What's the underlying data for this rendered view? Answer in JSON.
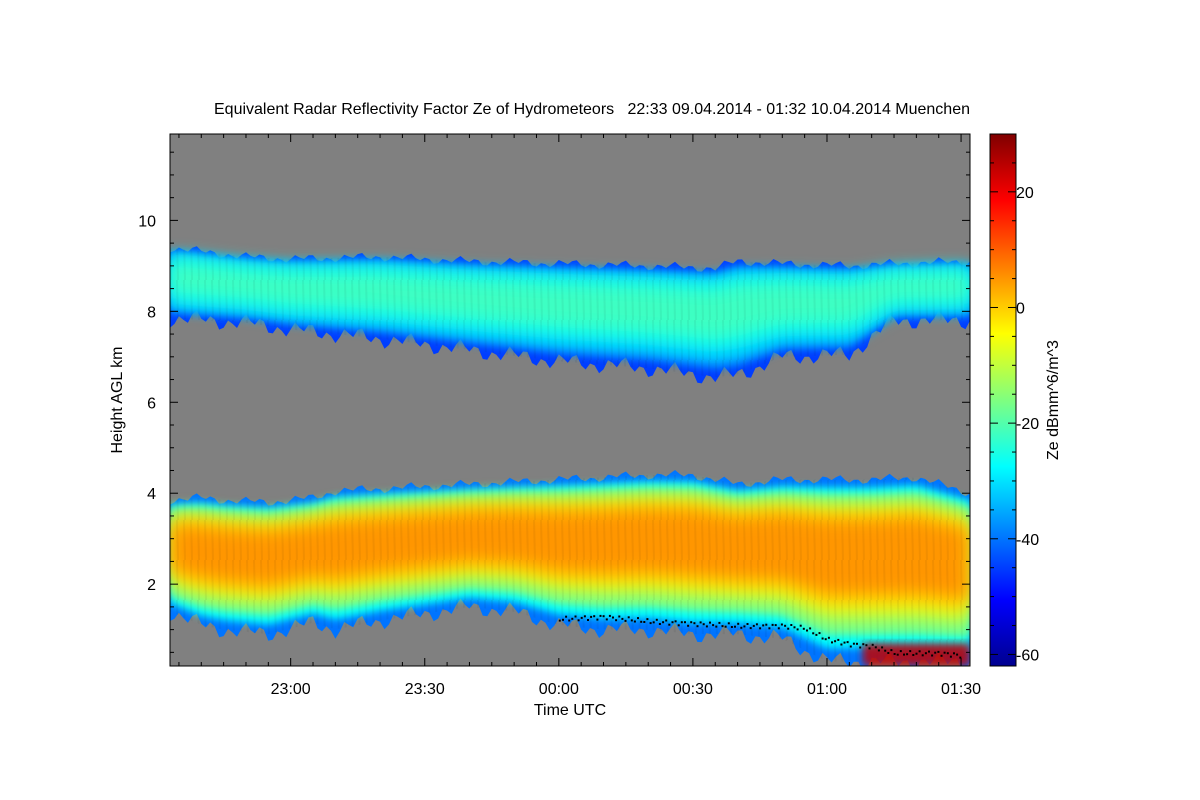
{
  "chart_data": {
    "type": "heatmap",
    "title": "Equivalent Radar Reflectivity Factor Ze of Hydrometeors   22:33 09.04.2014 - 01:32 10.04.2014 Muenchen",
    "xlabel": "Time UTC",
    "ylabel": "Height AGL km",
    "x_ticks": [
      "23:00",
      "23:30",
      "00:00",
      "00:30",
      "01:00",
      "01:30"
    ],
    "x_tick_minutes": [
      0,
      30,
      60,
      90,
      120,
      150
    ],
    "x_range_minutes": [
      -27,
      152
    ],
    "y_ticks": [
      2,
      4,
      6,
      8,
      10
    ],
    "y_range": [
      0.2,
      11.9
    ],
    "colorbar": {
      "label": "Ze dBmm^6/m^3",
      "ticks": [
        20,
        0,
        -20,
        -40,
        -60
      ],
      "range": [
        -62,
        30
      ],
      "colormap": "jet"
    },
    "background_color": "#808080",
    "layers": [
      {
        "profile_minutes": [
          -27,
          -10,
          0,
          20,
          40,
          60,
          80,
          95,
          100,
          110,
          125,
          135,
          152
        ],
        "top_km": [
          9.4,
          9.2,
          9.15,
          9.2,
          9.1,
          9.05,
          9.0,
          8.95,
          9.1,
          9.05,
          9.0,
          9.05,
          9.1
        ],
        "bottom_km": [
          7.85,
          7.75,
          7.6,
          7.4,
          7.15,
          6.9,
          6.75,
          6.55,
          6.6,
          7.0,
          7.05,
          7.8,
          7.8
        ],
        "core_dbz": -22,
        "edge_dbz": -45
      },
      {
        "profile_minutes": [
          -27,
          -20,
          -15,
          -5,
          5,
          10,
          20,
          30,
          40,
          50,
          60,
          70,
          80,
          90,
          100,
          110,
          120,
          130,
          140,
          152
        ],
        "top_km": [
          3.85,
          3.9,
          3.85,
          3.8,
          3.9,
          4.05,
          4.1,
          4.15,
          4.2,
          4.25,
          4.3,
          4.35,
          4.4,
          4.4,
          4.2,
          4.3,
          4.3,
          4.3,
          4.35,
          4.0
        ],
        "bottom_km": [
          1.4,
          1.1,
          1.0,
          0.9,
          1.15,
          1.0,
          1.2,
          1.35,
          1.5,
          1.4,
          1.1,
          1.0,
          1.0,
          0.9,
          0.9,
          0.8,
          0.3,
          0.3,
          0.3,
          0.3
        ],
        "core_dbz": 5,
        "edge_dbz": -40
      }
    ],
    "cloud_base_line": {
      "minutes": [
        60,
        70,
        80,
        90,
        100,
        110,
        115,
        120,
        125,
        130,
        135,
        140,
        145,
        150
      ],
      "height_km": [
        1.25,
        1.3,
        1.2,
        1.15,
        1.1,
        1.1,
        1.05,
        0.8,
        0.7,
        0.65,
        0.5,
        0.5,
        0.5,
        0.45
      ]
    }
  }
}
